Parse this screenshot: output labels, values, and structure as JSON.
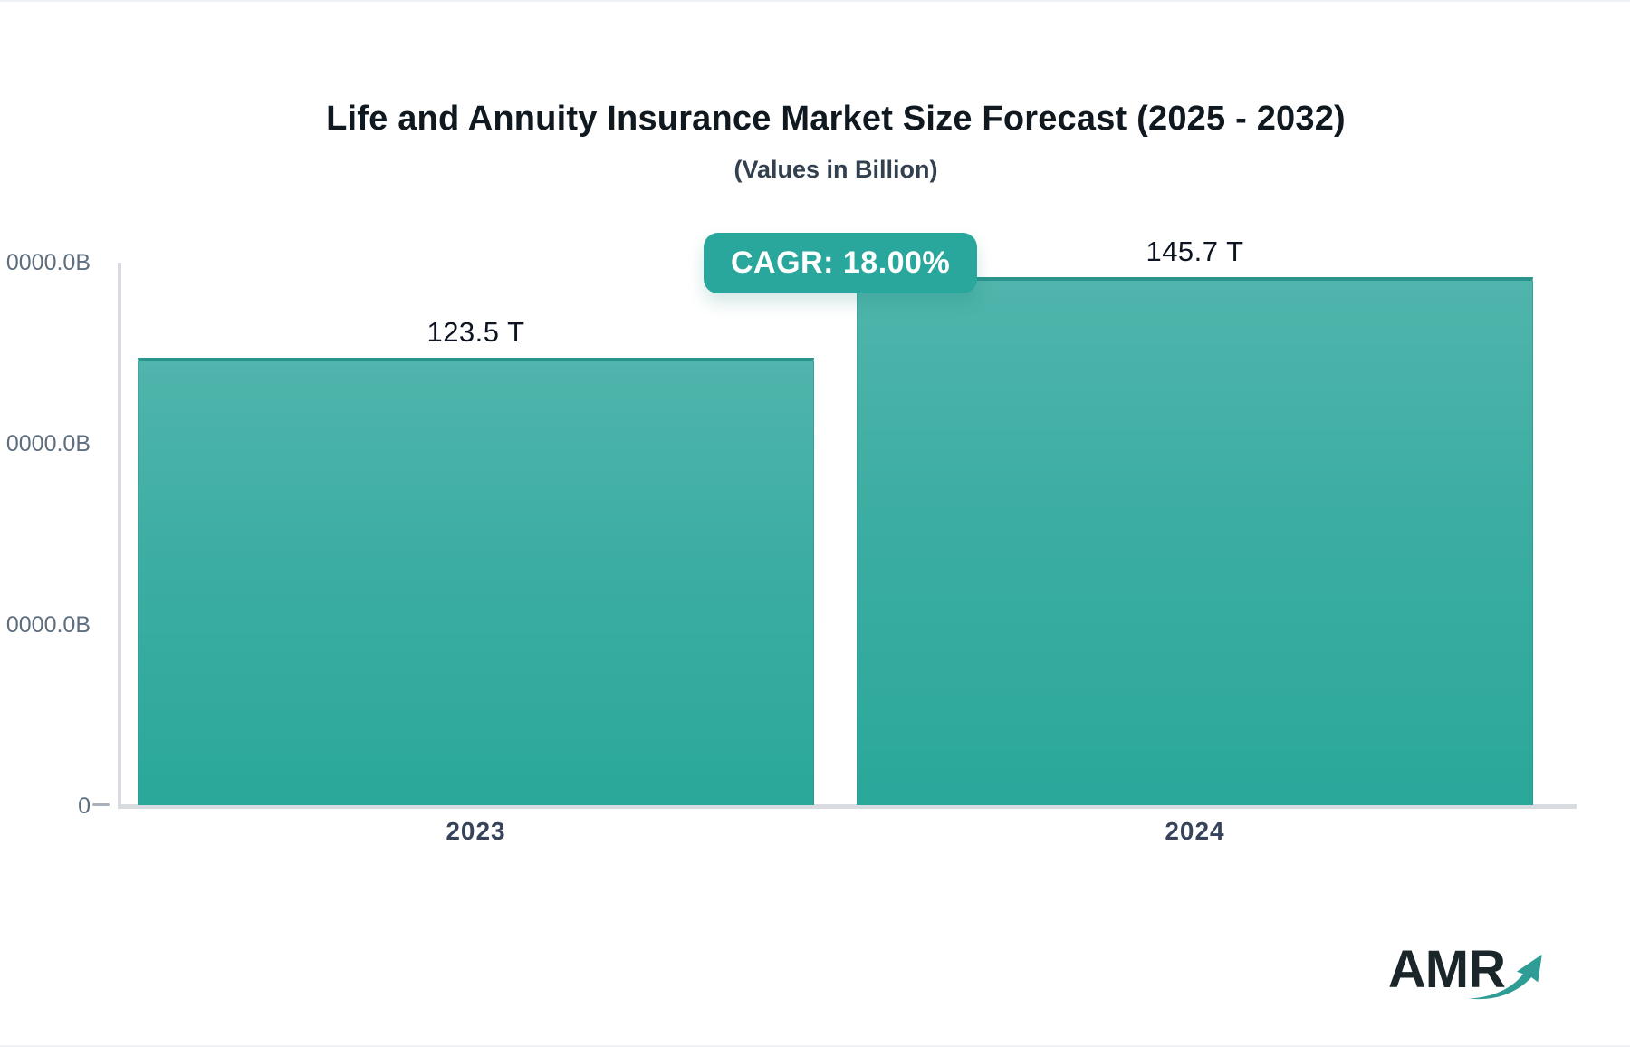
{
  "header": {
    "title": "Life and Annuity Insurance Market Size Forecast (2025 - 2032)",
    "subtitle": "(Values in Billion)"
  },
  "badge": {
    "text": "CAGR: 18.00%"
  },
  "chart_data": {
    "type": "bar",
    "title": "Life and Annuity Insurance Market Size Forecast (2025 - 2032)",
    "subtitle": "(Values in Billion)",
    "unit": "Billion",
    "categories": [
      "2023",
      "2024"
    ],
    "values_billion": [
      123500,
      145700
    ],
    "value_labels": [
      "123.5 T",
      "145.7 T"
    ],
    "cagr_percent": 18.0,
    "ylim": [
      0,
      150000
    ],
    "y_tick_labels": [
      "0000.0B",
      "0000.0B",
      "0000.0B",
      "0"
    ],
    "grid": false,
    "legend": "none",
    "bar_gradient_top": "#50b5ac",
    "bar_gradient_bottom": "#2aa89a",
    "bar_top_border": "#2b948c"
  },
  "logo": {
    "text": "AMR",
    "icon": "trend-up-arrow"
  },
  "colors": {
    "badge_bg": "#29a79c",
    "axis_line": "#d8dbe0",
    "y_tick_text": "#5f6e7e",
    "x_tick_text": "#36435a",
    "title_text": "#101820",
    "subtitle_text": "#33404f",
    "value_label_text": "#0d1320",
    "logo_text": "#1a262a",
    "logo_arrow": "#2f9d95"
  }
}
